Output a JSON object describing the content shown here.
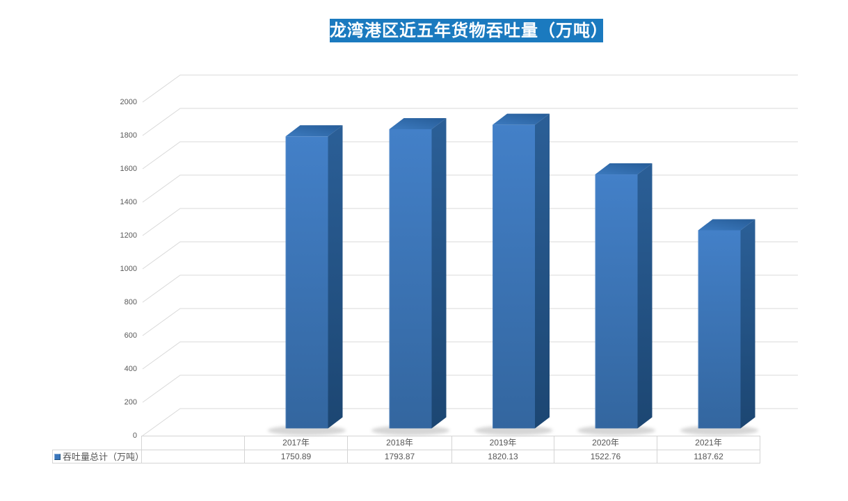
{
  "title": {
    "text": "龙湾港区近五年货物吞吐量（万吨）",
    "bg_color": "#1b7abf",
    "text_color": "#ffffff"
  },
  "legend": {
    "label": "吞吐量总计（万吨）",
    "marker_color": "#3a76bc"
  },
  "chart_data": {
    "type": "bar",
    "projection": "3d",
    "title": "龙湾港区近五年货物吞吐量（万吨）",
    "categories": [
      "2017年",
      "2018年",
      "2019年",
      "2020年",
      "2021年"
    ],
    "series": [
      {
        "name": "吞吐量总计（万吨）",
        "values": [
          1750.89,
          1793.87,
          1820.13,
          1522.76,
          1187.62
        ]
      }
    ],
    "xlabel": "",
    "ylabel": "",
    "ylim": [
      0,
      2000
    ],
    "ytick_step": 200,
    "ytick_labels": [
      "0",
      "200",
      "400",
      "600",
      "800",
      "1000",
      "1200",
      "1400",
      "1600",
      "1800",
      "2000"
    ],
    "grid": true,
    "grid_color": "#d9d9d9",
    "legend_position": "data-table-left",
    "bar_colors": {
      "front_top": "#4380c8",
      "front_bottom": "#33669f",
      "side_top": "#2b5f97",
      "side_bottom": "#1c4672",
      "top_near": "#3c7abf",
      "top_far": "#265c97"
    },
    "shadow_color": "#9a9a9a"
  }
}
